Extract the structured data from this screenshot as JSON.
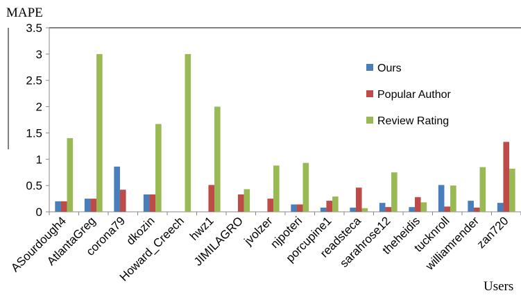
{
  "chart_data": {
    "type": "bar",
    "xlabel": "Users",
    "ylabel": "MAPE",
    "ylim": [
      0,
      3.5
    ],
    "yticks": [
      "0",
      "0.5",
      "1",
      "1.5",
      "2",
      "2.5",
      "3",
      "3.5"
    ],
    "grid": false,
    "legend_position": "right",
    "categories": [
      "ASourdough4",
      "AtlantaGreg",
      "corona79",
      "dkozin",
      "Howard_Creech",
      "hwz1",
      "JIMILAGRO",
      "jvolzer",
      "njpoteri",
      "porcupine1",
      "readsteca",
      "sarahrose12",
      "theheidis",
      "tucknroll",
      "williamrender",
      "zan720"
    ],
    "series": [
      {
        "name": "Ours",
        "color": "#4a7ebb",
        "values": [
          0.2,
          0.25,
          0.86,
          0.33,
          0,
          0,
          0,
          0,
          0.14,
          0.08,
          0.08,
          0.17,
          0.09,
          0.51,
          0.21,
          0.17
        ]
      },
      {
        "name": "Popular Author",
        "color": "#be4b48",
        "values": [
          0.2,
          0.25,
          0.42,
          0.33,
          0,
          0.51,
          0.33,
          0.25,
          0.14,
          0.21,
          0.46,
          0.09,
          0.28,
          0.1,
          0.08,
          1.33
        ]
      },
      {
        "name": "Review Rating",
        "color": "#98b954",
        "values": [
          1.4,
          3.0,
          0,
          1.67,
          3.0,
          2.0,
          0.43,
          0.88,
          0.93,
          0.29,
          0.07,
          0.75,
          0.18,
          0.5,
          0.85,
          0.82
        ]
      }
    ]
  }
}
